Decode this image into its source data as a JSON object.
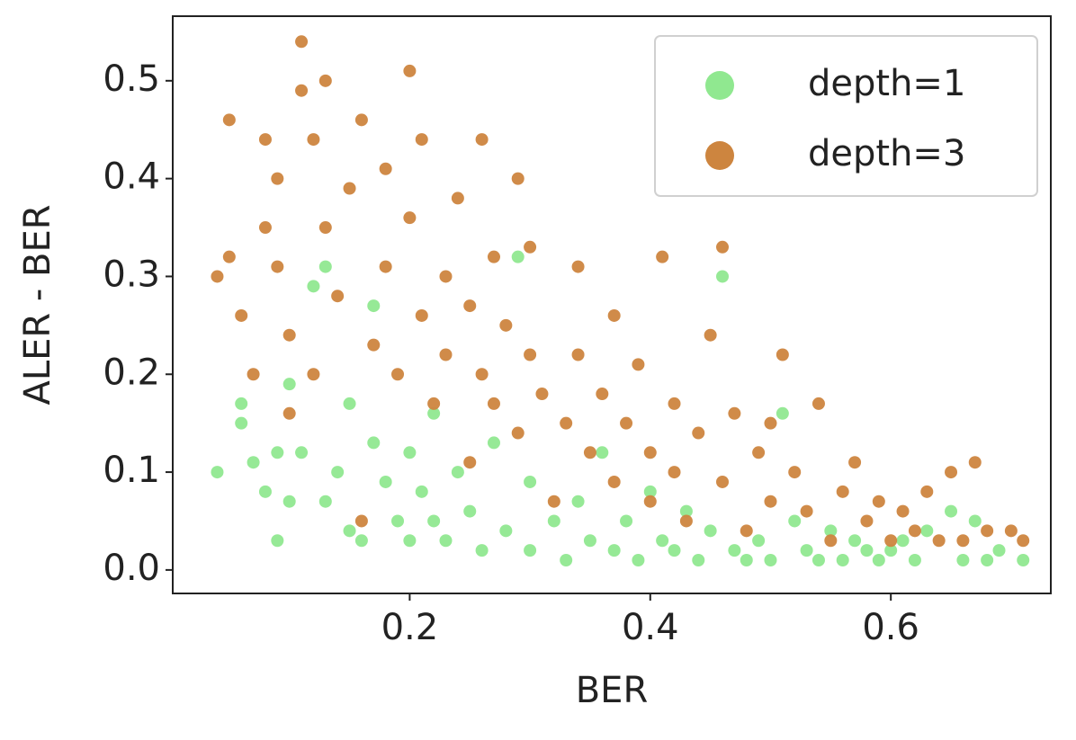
{
  "chart_data": {
    "type": "scatter",
    "xlabel": "BER",
    "ylabel": "ALER - BER",
    "xlim": [
      0.003,
      0.733
    ],
    "ylim": [
      -0.024,
      0.566
    ],
    "xticks": [
      0.2,
      0.4,
      0.6
    ],
    "yticks": [
      {
        "value": 0,
        "label": "0.0"
      },
      0.1,
      0.2,
      0.3,
      0.4,
      0.5
    ],
    "legend": "upper right",
    "series": [
      {
        "name": "depth=1",
        "color": "#90e890",
        "x": [
          0.04,
          0.06,
          0.06,
          0.07,
          0.08,
          0.09,
          0.09,
          0.1,
          0.1,
          0.11,
          0.12,
          0.13,
          0.13,
          0.14,
          0.15,
          0.15,
          0.16,
          0.17,
          0.17,
          0.18,
          0.19,
          0.2,
          0.2,
          0.21,
          0.22,
          0.22,
          0.23,
          0.24,
          0.25,
          0.26,
          0.27,
          0.28,
          0.29,
          0.3,
          0.3,
          0.32,
          0.33,
          0.34,
          0.35,
          0.36,
          0.37,
          0.38,
          0.39,
          0.4,
          0.41,
          0.42,
          0.43,
          0.44,
          0.45,
          0.46,
          0.47,
          0.48,
          0.49,
          0.5,
          0.51,
          0.52,
          0.53,
          0.54,
          0.55,
          0.56,
          0.57,
          0.58,
          0.59,
          0.6,
          0.61,
          0.62,
          0.63,
          0.65,
          0.66,
          0.67,
          0.68,
          0.69,
          0.71
        ],
        "values": [
          0.1,
          0.15,
          0.17,
          0.11,
          0.08,
          0.12,
          0.03,
          0.07,
          0.19,
          0.12,
          0.29,
          0.07,
          0.31,
          0.1,
          0.04,
          0.17,
          0.03,
          0.27,
          0.13,
          0.09,
          0.05,
          0.03,
          0.12,
          0.08,
          0.05,
          0.16,
          0.03,
          0.1,
          0.06,
          0.02,
          0.13,
          0.04,
          0.32,
          0.02,
          0.09,
          0.05,
          0.01,
          0.07,
          0.03,
          0.12,
          0.02,
          0.05,
          0.01,
          0.08,
          0.03,
          0.02,
          0.06,
          0.01,
          0.04,
          0.3,
          0.02,
          0.01,
          0.03,
          0.01,
          0.16,
          0.05,
          0.02,
          0.01,
          0.04,
          0.01,
          0.03,
          0.02,
          0.01,
          0.02,
          0.03,
          0.01,
          0.04,
          0.06,
          0.01,
          0.05,
          0.01,
          0.02,
          0.01
        ]
      },
      {
        "name": "depth=3",
        "color": "#cd853f",
        "x": [
          0.04,
          0.05,
          0.05,
          0.06,
          0.07,
          0.08,
          0.08,
          0.09,
          0.09,
          0.1,
          0.1,
          0.11,
          0.11,
          0.12,
          0.12,
          0.13,
          0.13,
          0.14,
          0.15,
          0.16,
          0.16,
          0.17,
          0.18,
          0.18,
          0.19,
          0.2,
          0.2,
          0.21,
          0.21,
          0.22,
          0.23,
          0.23,
          0.24,
          0.25,
          0.25,
          0.26,
          0.26,
          0.27,
          0.27,
          0.28,
          0.29,
          0.29,
          0.3,
          0.3,
          0.31,
          0.32,
          0.33,
          0.34,
          0.34,
          0.35,
          0.36,
          0.37,
          0.37,
          0.38,
          0.39,
          0.4,
          0.4,
          0.41,
          0.42,
          0.42,
          0.43,
          0.44,
          0.45,
          0.46,
          0.46,
          0.47,
          0.48,
          0.49,
          0.5,
          0.5,
          0.51,
          0.52,
          0.53,
          0.54,
          0.55,
          0.56,
          0.57,
          0.58,
          0.59,
          0.6,
          0.61,
          0.62,
          0.63,
          0.64,
          0.65,
          0.66,
          0.67,
          0.68,
          0.7,
          0.71
        ],
        "values": [
          0.3,
          0.46,
          0.32,
          0.26,
          0.2,
          0.44,
          0.35,
          0.4,
          0.31,
          0.16,
          0.24,
          0.49,
          0.54,
          0.44,
          0.2,
          0.35,
          0.5,
          0.28,
          0.39,
          0.46,
          0.05,
          0.23,
          0.41,
          0.31,
          0.2,
          0.51,
          0.36,
          0.44,
          0.26,
          0.17,
          0.3,
          0.22,
          0.38,
          0.27,
          0.11,
          0.44,
          0.2,
          0.32,
          0.17,
          0.25,
          0.4,
          0.14,
          0.33,
          0.22,
          0.18,
          0.07,
          0.15,
          0.31,
          0.22,
          0.12,
          0.18,
          0.09,
          0.26,
          0.15,
          0.21,
          0.12,
          0.07,
          0.32,
          0.17,
          0.1,
          0.05,
          0.14,
          0.24,
          0.33,
          0.09,
          0.16,
          0.04,
          0.12,
          0.07,
          0.15,
          0.22,
          0.1,
          0.06,
          0.17,
          0.03,
          0.08,
          0.11,
          0.05,
          0.07,
          0.03,
          0.06,
          0.04,
          0.08,
          0.03,
          0.1,
          0.03,
          0.11,
          0.04,
          0.04,
          0.03
        ]
      }
    ]
  }
}
